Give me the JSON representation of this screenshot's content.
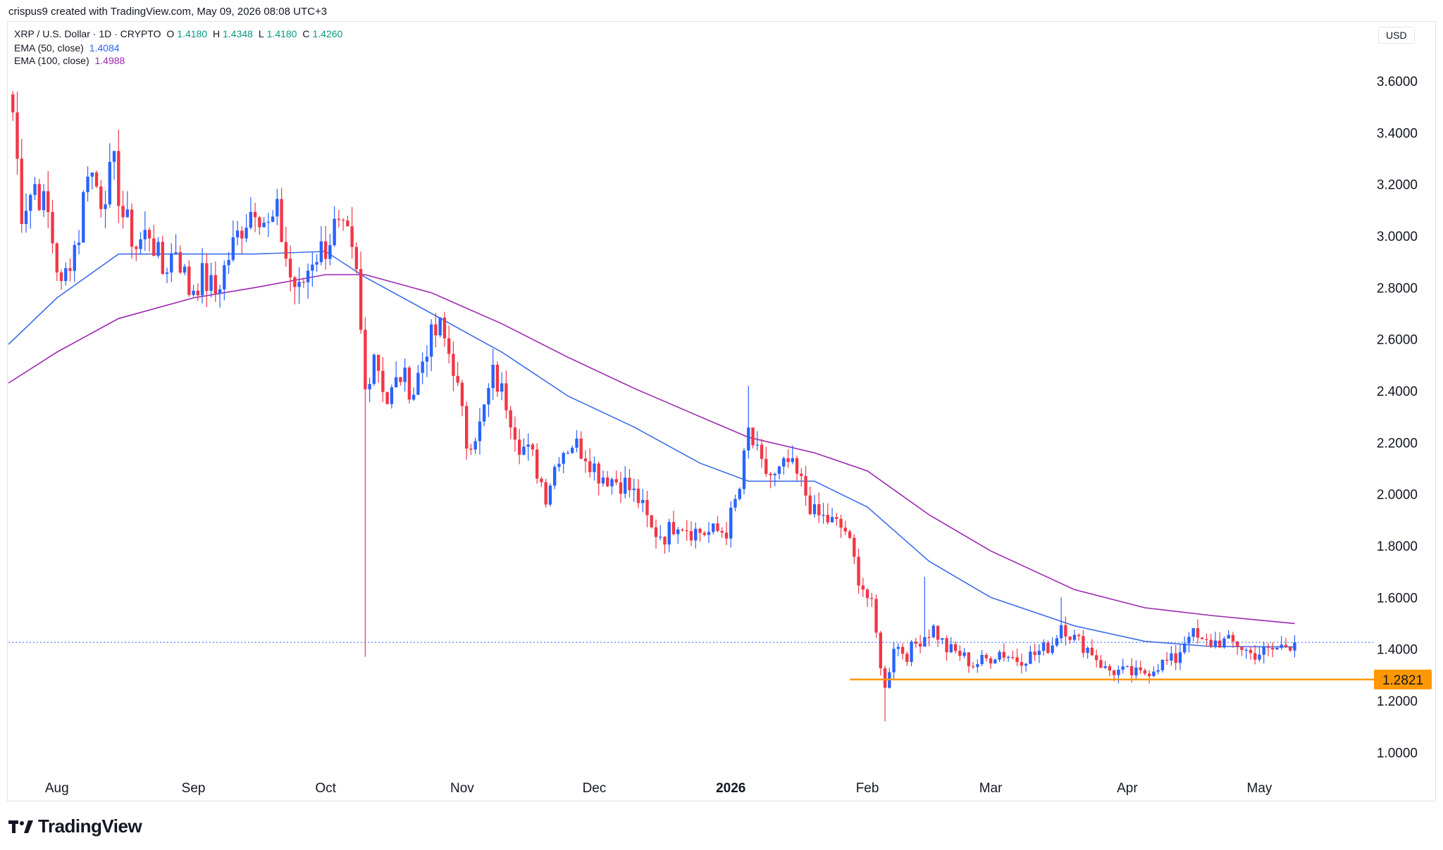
{
  "header": {
    "caption": "crispus9 created with TradingView.com, May 09, 2026 08:08 UTC+3"
  },
  "legend": {
    "symbol": "XRP / U.S. Dollar · 1D · CRYPTO",
    "open_label": "O",
    "open": "1.4180",
    "high_label": "H",
    "high": "1.4348",
    "low_label": "L",
    "low": "1.4180",
    "close_label": "C",
    "close": "1.4260",
    "ema50_label": "EMA (50, close)",
    "ema50_value": "1.4084",
    "ema100_label": "EMA (100, close)",
    "ema100_value": "1.4988"
  },
  "currency": "USD",
  "brand": {
    "name": "TradingView",
    "logo": "tradingview-logo"
  },
  "colors": {
    "up": "#2962ff",
    "down": "#f23645",
    "ema50": "#3d6eea",
    "ema100": "#9c27b0",
    "support": "#ff9800",
    "last_price_line": "#2962ff",
    "ohlc_value": "#089981"
  },
  "chart_data": {
    "type": "candlestick",
    "title": "XRP / U.S. Dollar · 1D · CRYPTO",
    "ylim": [
      0.9,
      3.75
    ],
    "y_ticks": [
      "3.6000",
      "3.4000",
      "3.2000",
      "3.0000",
      "2.8000",
      "2.6000",
      "2.4000",
      "2.2000",
      "2.0000",
      "1.8000",
      "1.6000",
      "1.4000",
      "1.2000",
      "1.0000"
    ],
    "x_ticks": [
      {
        "label": "Aug",
        "date": "2025-08-01"
      },
      {
        "label": "Sep",
        "date": "2025-09-01"
      },
      {
        "label": "Oct",
        "date": "2025-10-01"
      },
      {
        "label": "Nov",
        "date": "2025-11-01"
      },
      {
        "label": "Dec",
        "date": "2025-12-01"
      },
      {
        "label": "2026",
        "date": "2026-01-01",
        "bold": true
      },
      {
        "label": "Feb",
        "date": "2026-02-01"
      },
      {
        "label": "Mar",
        "date": "2026-03-01"
      },
      {
        "label": "Apr",
        "date": "2026-04-01"
      },
      {
        "label": "May",
        "date": "2026-05-01"
      }
    ],
    "x_range": [
      "2025-07-21",
      "2026-05-27"
    ],
    "close_path": [
      [
        "2025-07-22",
        3.48
      ],
      [
        "2025-07-24",
        3.1
      ],
      [
        "2025-07-27",
        3.2
      ],
      [
        "2025-07-30",
        3.08
      ],
      [
        "2025-08-02",
        2.79
      ],
      [
        "2025-08-04",
        2.92
      ],
      [
        "2025-08-06",
        3.01
      ],
      [
        "2025-08-08",
        3.28
      ],
      [
        "2025-08-11",
        3.15
      ],
      [
        "2025-08-14",
        3.26
      ],
      [
        "2025-08-16",
        3.08
      ],
      [
        "2025-08-19",
        2.96
      ],
      [
        "2025-08-22",
        3.02
      ],
      [
        "2025-08-25",
        2.86
      ],
      [
        "2025-08-28",
        2.96
      ],
      [
        "2025-08-31",
        2.79
      ],
      [
        "2025-09-03",
        2.84
      ],
      [
        "2025-09-06",
        2.78
      ],
      [
        "2025-09-09",
        2.92
      ],
      [
        "2025-09-12",
        3.04
      ],
      [
        "2025-09-15",
        3.13
      ],
      [
        "2025-09-18",
        3.03
      ],
      [
        "2025-09-20",
        3.08
      ],
      [
        "2025-09-23",
        2.84
      ],
      [
        "2025-09-25",
        2.78
      ],
      [
        "2025-09-28",
        2.92
      ],
      [
        "2025-10-01",
        2.96
      ],
      [
        "2025-10-03",
        3.03
      ],
      [
        "2025-10-06",
        2.98
      ],
      [
        "2025-10-08",
        2.84
      ],
      [
        "2025-10-10",
        2.4
      ],
      [
        "2025-10-12",
        2.56
      ],
      [
        "2025-10-15",
        2.36
      ],
      [
        "2025-10-18",
        2.46
      ],
      [
        "2025-10-21",
        2.4
      ],
      [
        "2025-10-24",
        2.58
      ],
      [
        "2025-10-27",
        2.64
      ],
      [
        "2025-10-30",
        2.5
      ],
      [
        "2025-11-02",
        2.2
      ],
      [
        "2025-11-05",
        2.26
      ],
      [
        "2025-11-08",
        2.46
      ],
      [
        "2025-11-11",
        2.36
      ],
      [
        "2025-11-14",
        2.2
      ],
      [
        "2025-11-17",
        2.14
      ],
      [
        "2025-11-20",
        2.0
      ],
      [
        "2025-11-23",
        2.16
      ],
      [
        "2025-11-26",
        2.2
      ],
      [
        "2025-11-29",
        2.16
      ],
      [
        "2025-12-02",
        2.08
      ],
      [
        "2025-12-05",
        2.06
      ],
      [
        "2025-12-08",
        2.04
      ],
      [
        "2025-12-11",
        1.98
      ],
      [
        "2025-12-14",
        1.86
      ],
      [
        "2025-12-17",
        1.84
      ],
      [
        "2025-12-20",
        1.9
      ],
      [
        "2025-12-23",
        1.86
      ],
      [
        "2025-12-27",
        1.85
      ],
      [
        "2025-12-31",
        1.86
      ],
      [
        "2026-01-03",
        2.02
      ],
      [
        "2026-01-05",
        2.24
      ],
      [
        "2026-01-08",
        2.1
      ],
      [
        "2026-01-11",
        2.06
      ],
      [
        "2026-01-14",
        2.12
      ],
      [
        "2026-01-17",
        2.04
      ],
      [
        "2026-01-20",
        1.92
      ],
      [
        "2026-01-23",
        1.9
      ],
      [
        "2026-01-27",
        1.86
      ],
      [
        "2026-01-30",
        1.68
      ],
      [
        "2026-02-02",
        1.56
      ],
      [
        "2026-02-05",
        1.24
      ],
      [
        "2026-02-07",
        1.42
      ],
      [
        "2026-02-10",
        1.38
      ],
      [
        "2026-02-13",
        1.44
      ],
      [
        "2026-02-16",
        1.48
      ],
      [
        "2026-02-19",
        1.4
      ],
      [
        "2026-02-22",
        1.38
      ],
      [
        "2026-02-25",
        1.34
      ],
      [
        "2026-02-28",
        1.36
      ],
      [
        "2026-03-03",
        1.39
      ],
      [
        "2026-03-07",
        1.36
      ],
      [
        "2026-03-11",
        1.38
      ],
      [
        "2026-03-15",
        1.42
      ],
      [
        "2026-03-17",
        1.5
      ],
      [
        "2026-03-20",
        1.44
      ],
      [
        "2026-03-24",
        1.39
      ],
      [
        "2026-03-27",
        1.32
      ],
      [
        "2026-03-31",
        1.31
      ],
      [
        "2026-04-04",
        1.3
      ],
      [
        "2026-04-08",
        1.34
      ],
      [
        "2026-04-12",
        1.36
      ],
      [
        "2026-04-15",
        1.47
      ],
      [
        "2026-04-18",
        1.42
      ],
      [
        "2026-04-22",
        1.43
      ],
      [
        "2026-04-26",
        1.42
      ],
      [
        "2026-04-29",
        1.38
      ],
      [
        "2026-05-03",
        1.39
      ],
      [
        "2026-05-06",
        1.41
      ],
      [
        "2026-05-09",
        1.426
      ]
    ],
    "spikes": [
      {
        "date": "2025-10-10",
        "low": 1.37
      },
      {
        "date": "2026-02-05",
        "low": 1.12
      },
      {
        "date": "2026-01-05",
        "high": 2.42
      },
      {
        "date": "2026-02-14",
        "high": 1.68
      },
      {
        "date": "2026-03-17",
        "high": 1.6
      },
      {
        "date": "2025-07-21",
        "high": 3.6
      }
    ],
    "ema50": [
      [
        "2025-07-21",
        2.58
      ],
      [
        "2025-08-01",
        2.76
      ],
      [
        "2025-08-15",
        2.93
      ],
      [
        "2025-09-01",
        2.93
      ],
      [
        "2025-09-15",
        2.93
      ],
      [
        "2025-10-01",
        2.94
      ],
      [
        "2025-10-10",
        2.84
      ],
      [
        "2025-10-25",
        2.7
      ],
      [
        "2025-11-10",
        2.55
      ],
      [
        "2025-11-25",
        2.38
      ],
      [
        "2025-12-10",
        2.26
      ],
      [
        "2025-12-25",
        2.12
      ],
      [
        "2026-01-05",
        2.05
      ],
      [
        "2026-01-20",
        2.05
      ],
      [
        "2026-02-01",
        1.95
      ],
      [
        "2026-02-15",
        1.74
      ],
      [
        "2026-03-01",
        1.6
      ],
      [
        "2026-03-20",
        1.49
      ],
      [
        "2026-04-05",
        1.43
      ],
      [
        "2026-04-20",
        1.41
      ],
      [
        "2026-05-09",
        1.4084
      ]
    ],
    "ema100": [
      [
        "2025-07-21",
        2.43
      ],
      [
        "2025-08-01",
        2.55
      ],
      [
        "2025-08-15",
        2.68
      ],
      [
        "2025-09-01",
        2.76
      ],
      [
        "2025-09-15",
        2.8
      ],
      [
        "2025-10-01",
        2.85
      ],
      [
        "2025-10-10",
        2.85
      ],
      [
        "2025-10-25",
        2.78
      ],
      [
        "2025-11-10",
        2.66
      ],
      [
        "2025-11-25",
        2.53
      ],
      [
        "2025-12-10",
        2.41
      ],
      [
        "2025-12-25",
        2.3
      ],
      [
        "2026-01-05",
        2.22
      ],
      [
        "2026-01-20",
        2.16
      ],
      [
        "2026-02-01",
        2.09
      ],
      [
        "2026-02-15",
        1.92
      ],
      [
        "2026-03-01",
        1.78
      ],
      [
        "2026-03-20",
        1.63
      ],
      [
        "2026-04-05",
        1.56
      ],
      [
        "2026-04-20",
        1.53
      ],
      [
        "2026-05-09",
        1.4988
      ]
    ],
    "support_level": {
      "value": 1.2821,
      "label": "1.2821",
      "from": "2026-01-28",
      "to": "2026-05-27"
    },
    "last_price": 1.426,
    "grid": false,
    "legend_position": "top-left"
  }
}
